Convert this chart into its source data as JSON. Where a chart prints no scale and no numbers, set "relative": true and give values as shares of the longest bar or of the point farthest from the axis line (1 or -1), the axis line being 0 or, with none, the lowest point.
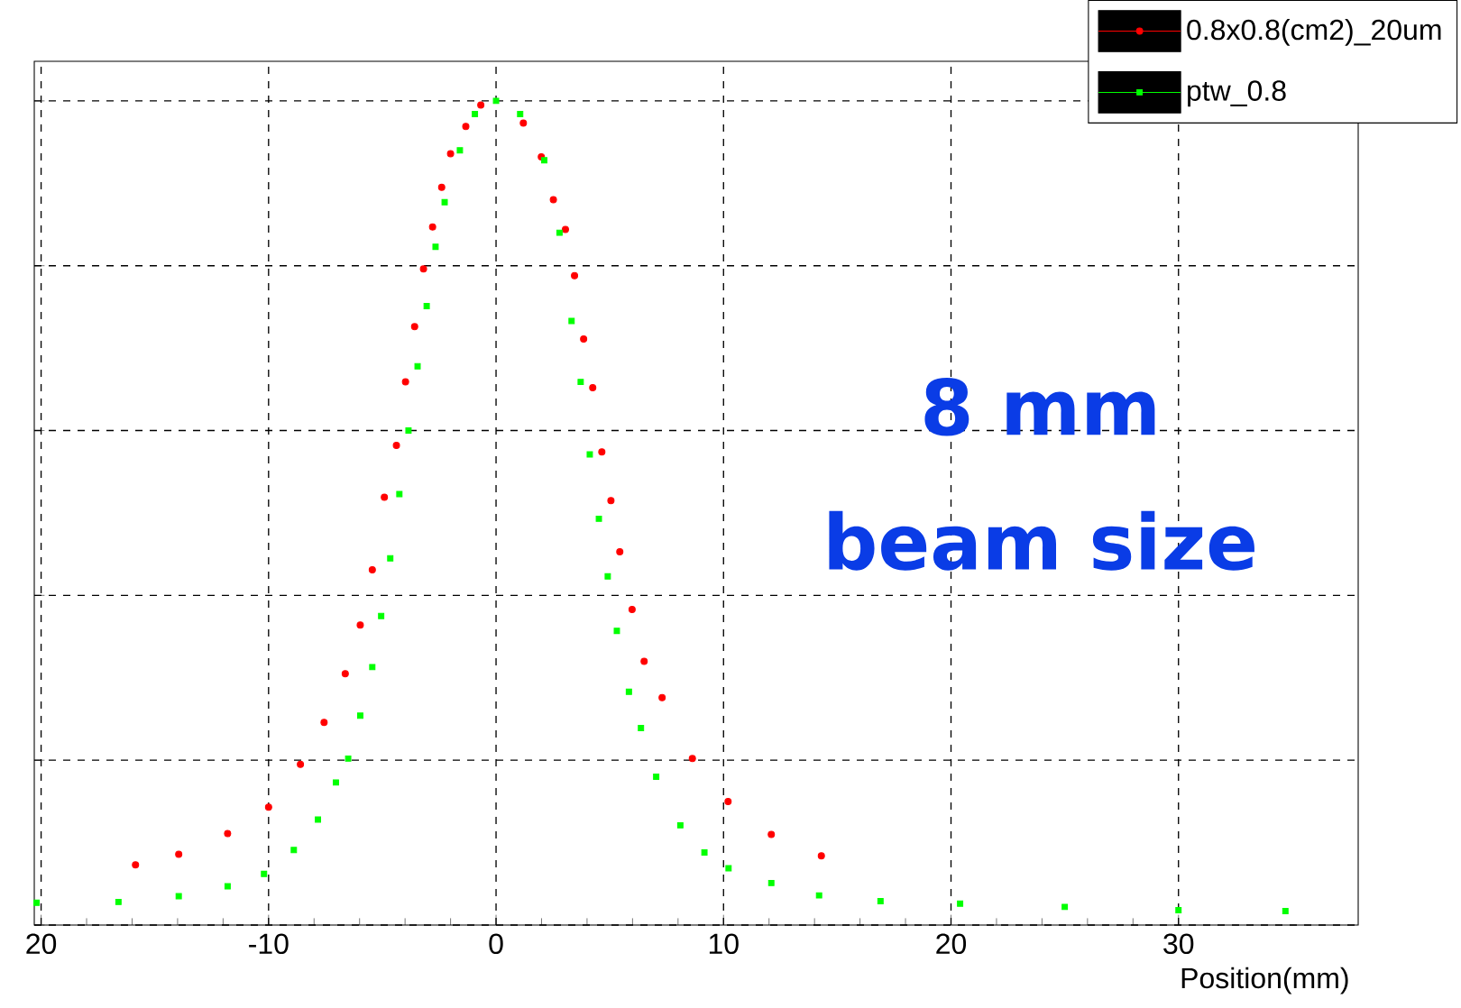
{
  "chart_data": {
    "type": "scatter",
    "relative": true,
    "xlabel": "Position(mm)",
    "xlim": [
      -20.3,
      37.9
    ],
    "xticks": [
      {
        "value": -20,
        "label": "20"
      },
      -10,
      0,
      10,
      20,
      30
    ],
    "grid": true,
    "legend": "top right",
    "tick_labels": "x",
    "annotations": [
      "8 mm",
      "beam size"
    ],
    "series": [
      {
        "name": "0.8x0.8(cm2)_20um",
        "color": "#ff0000",
        "marker": "circle",
        "x": [
          -15.85,
          -13.95,
          -11.8,
          -10.0,
          -8.6,
          -7.56,
          -6.63,
          -5.97,
          -5.44,
          -4.91,
          -4.38,
          -3.98,
          -3.58,
          -3.19,
          -2.79,
          -2.39,
          -2.0,
          -1.33,
          -0.67,
          0,
          1.2,
          1.99,
          2.52,
          3.05,
          3.45,
          3.85,
          4.25,
          4.65,
          5.05,
          5.44,
          5.98,
          6.51,
          7.3,
          8.63,
          10.2,
          12.1,
          14.3
        ],
        "values": [
          0.073,
          0.086,
          0.111,
          0.143,
          0.195,
          0.246,
          0.305,
          0.364,
          0.431,
          0.519,
          0.582,
          0.659,
          0.726,
          0.796,
          0.847,
          0.895,
          0.936,
          0.969,
          0.995,
          null,
          0.973,
          0.932,
          0.88,
          0.844,
          0.788,
          0.711,
          0.652,
          0.574,
          0.515,
          0.453,
          0.383,
          0.32,
          0.276,
          0.202,
          0.15,
          0.11,
          0.084
        ]
      },
      {
        "name": "ptw_0.8",
        "color": "#00ff00",
        "marker": "square",
        "x": [
          -20.2,
          -16.6,
          -13.95,
          -11.8,
          -10.2,
          -8.89,
          -7.83,
          -7.04,
          -6.5,
          -5.97,
          -5.44,
          -5.05,
          -4.65,
          -4.25,
          -3.85,
          -3.45,
          -3.05,
          -2.66,
          -2.26,
          -1.59,
          -0.93,
          0,
          1.06,
          2.12,
          2.79,
          3.32,
          3.72,
          4.12,
          4.52,
          4.91,
          5.31,
          5.84,
          6.37,
          7.04,
          8.1,
          9.16,
          10.22,
          12.1,
          14.2,
          16.9,
          20.4,
          25,
          30,
          34.7
        ],
        "values": [
          0.027,
          0.028,
          0.035,
          0.047,
          0.062,
          0.091,
          0.128,
          0.173,
          0.202,
          0.254,
          0.313,
          0.375,
          0.445,
          0.523,
          0.6,
          0.678,
          0.751,
          0.823,
          0.877,
          0.94,
          0.984,
          1.0,
          0.984,
          0.928,
          0.84,
          0.733,
          0.659,
          0.571,
          0.493,
          0.423,
          0.357,
          0.283,
          0.239,
          0.18,
          0.121,
          0.088,
          0.069,
          0.051,
          0.036,
          0.029,
          0.026,
          0.022,
          0.018,
          0.017
        ]
      }
    ]
  }
}
